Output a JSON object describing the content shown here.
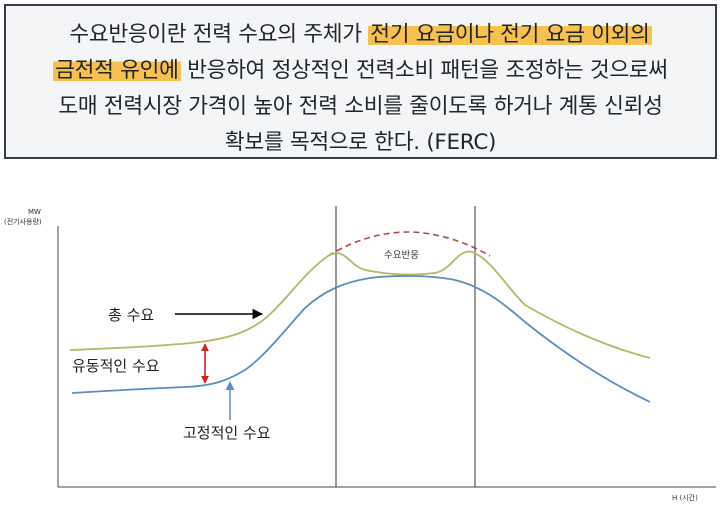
{
  "definition": {
    "line1_plain": "수요반응이란 전력 수요의 주체가 ",
    "line1_highlight": "전기 요금이나 전기 요금 이외의",
    "line2_highlight": "금전적 유인에",
    "line2_plain": " 반응하여 정상적인 전력소비 패턴을 조정하는 것으로써",
    "line3": "도매 전력시장 가격이 높아 전력 소비를 줄이도록 하거나 계통 신뢰성",
    "line4": "확보를 목적으로 한다. (FERC)",
    "highlight_color": "#f7c14f"
  },
  "diagram": {
    "y_axis_label": "MW",
    "y_axis_sublabel": "(전기사용량)",
    "x_axis_label": "H (시간)",
    "total_demand_label": "총 수요",
    "flexible_demand_label": "유동적인 수요",
    "fixed_demand_label": "고정적인 수요",
    "demand_response_label": "수요반응",
    "colors": {
      "total_curve": "#b5b867",
      "fixed_curve": "#5b8fbf",
      "dashed_peak": "#a65050",
      "flexible_arrow": "#d62020",
      "fixed_arrow": "#5b8fbf"
    }
  }
}
